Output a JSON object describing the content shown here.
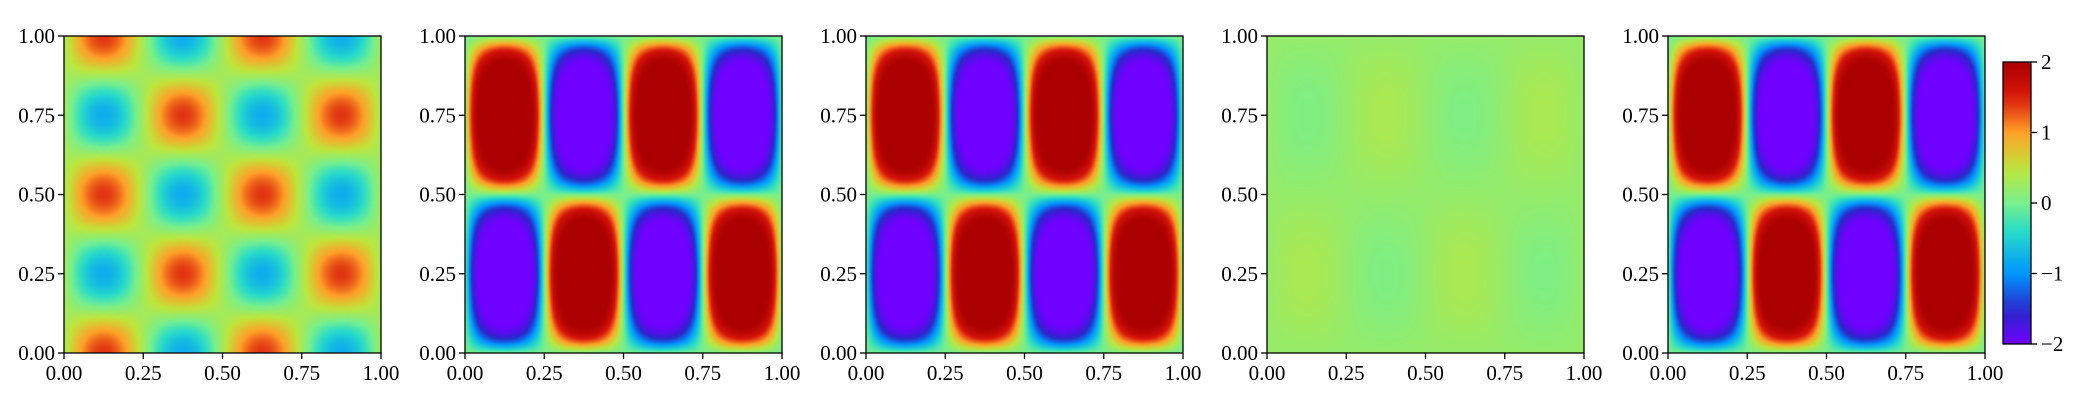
{
  "chart_data": {
    "type": "heatmap",
    "colormap": "rainbow",
    "colorbar": {
      "vmin": -2,
      "vmax": 2,
      "ticks": [
        2,
        1,
        0,
        -1,
        -2
      ],
      "tick_labels": [
        "2",
        "1",
        "0",
        "−1",
        "−2"
      ]
    },
    "panels": [
      {
        "name": "panel-1",
        "xlim": [
          0,
          1
        ],
        "ylim": [
          0,
          1
        ],
        "xticks": [
          "0.00",
          "0.25",
          "0.50",
          "0.75",
          "1.00"
        ],
        "yticks": [
          "0.00",
          "0.25",
          "0.50",
          "0.75",
          "1.00"
        ],
        "field": {
          "form": "sin(kx*pi*x)*cos(ky*pi*y)",
          "kx": 4,
          "ky": 4,
          "amplitude": 1.1,
          "offset": 0.3,
          "sharpness": 1
        }
      },
      {
        "name": "panel-2",
        "xlim": [
          0,
          1
        ],
        "ylim": [
          0,
          1
        ],
        "xticks": [
          "0.00",
          "0.25",
          "0.50",
          "0.75",
          "1.00"
        ],
        "yticks": [
          "0.00",
          "0.25",
          "0.50",
          "0.75",
          "1.00"
        ],
        "field": {
          "form": "-sin(kx*pi*x)*sin(ky*pi*y)",
          "kx": 4,
          "ky": 2,
          "amplitude": 2.2,
          "offset": 0,
          "sharpness": 3
        }
      },
      {
        "name": "panel-3",
        "xlim": [
          0,
          1
        ],
        "ylim": [
          0,
          1
        ],
        "xticks": [
          "0.00",
          "0.25",
          "0.50",
          "0.75",
          "1.00"
        ],
        "yticks": [
          "0.00",
          "0.25",
          "0.50",
          "0.75",
          "1.00"
        ],
        "field": {
          "form": "-sin(kx*pi*x)*sin(ky*pi*y)",
          "kx": 4,
          "ky": 2,
          "amplitude": 2.2,
          "offset": 0,
          "sharpness": 3
        }
      },
      {
        "name": "panel-4",
        "xlim": [
          0,
          1
        ],
        "ylim": [
          0,
          1
        ],
        "xticks": [
          "0.00",
          "0.25",
          "0.50",
          "0.75",
          "1.00"
        ],
        "yticks": [
          "0.00",
          "0.25",
          "0.50",
          "0.75",
          "1.00"
        ],
        "field": {
          "form": "sin(kx*pi*x)*sin(ky*pi*y)",
          "kx": 4,
          "ky": 2,
          "amplitude": 0.15,
          "offset": 0.2,
          "sharpness": 1
        }
      },
      {
        "name": "panel-5",
        "xlim": [
          0,
          1
        ],
        "ylim": [
          0,
          1
        ],
        "xticks": [
          "0.00",
          "0.25",
          "0.50",
          "0.75",
          "1.00"
        ],
        "yticks": [
          "0.00",
          "0.25",
          "0.50",
          "0.75",
          "1.00"
        ],
        "field": {
          "form": "-sin(kx*pi*x)*sin(ky*pi*y)",
          "kx": 4,
          "ky": 2,
          "amplitude": 2.2,
          "offset": 0,
          "sharpness": 3
        }
      }
    ]
  }
}
